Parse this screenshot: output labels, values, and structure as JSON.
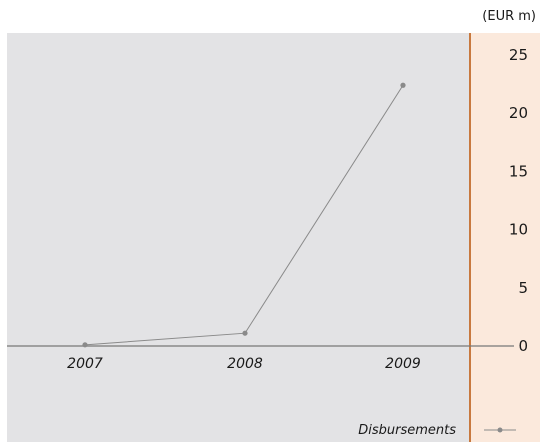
{
  "chart_data": {
    "type": "line",
    "unit": "(EUR m)",
    "categories": [
      "2007",
      "2008",
      "2009"
    ],
    "series": [
      {
        "name": "Disbursements",
        "values": [
          0.1,
          1.1,
          22.4
        ]
      }
    ],
    "ylim": [
      0,
      25
    ],
    "yticks": [
      "0",
      "5",
      "10",
      "15",
      "20",
      "25"
    ],
    "grid": false,
    "legend_position": "bottom-right",
    "colors": {
      "plot_background": "#e3e3e5",
      "axis_panel_background": "#fbe9dc",
      "axis_divider": "#c8793f",
      "series": "#8a8a8a",
      "baseline": "#777777"
    }
  }
}
